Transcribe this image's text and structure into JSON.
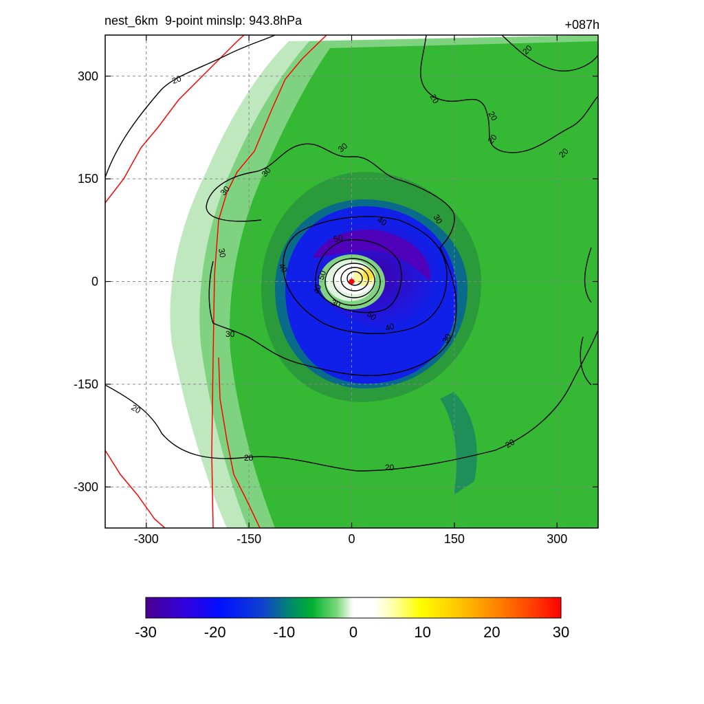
{
  "chart_data": {
    "type": "heatmap",
    "title_left": "nest_6km  9-point minslp: 943.8hPa",
    "title_right": "+087h",
    "xlabel": "",
    "ylabel": "",
    "x_range": [
      -360,
      360
    ],
    "y_range": [
      -360,
      360
    ],
    "x_ticks": [
      -300,
      -150,
      0,
      150,
      300
    ],
    "y_ticks": [
      300,
      150,
      0,
      -150,
      -300
    ],
    "x_tick_labels": [
      "-300",
      "-150",
      "0",
      "150",
      "300"
    ],
    "y_tick_labels": [
      "300",
      "150",
      "0",
      "-150",
      "-300"
    ],
    "grid": true,
    "colorbar": {
      "range": [
        -30,
        30
      ],
      "ticks": [
        -30,
        -20,
        -10,
        0,
        10,
        20,
        30
      ],
      "tick_labels": [
        "-30",
        "-20",
        "-10",
        "0",
        "10",
        "20",
        "30"
      ],
      "placement": "bottom"
    },
    "contours": [
      {
        "level": 20,
        "label": "20"
      },
      {
        "level": 30,
        "label": "30"
      },
      {
        "level": 40,
        "label": "40"
      },
      {
        "level": 50,
        "label": "50"
      }
    ],
    "storm_center": {
      "x": 0,
      "y": 0
    },
    "colors": {
      "contour": "#000000",
      "boundary": "#ff0000",
      "center_marker": "#ff0000",
      "grid": "#888888"
    }
  }
}
